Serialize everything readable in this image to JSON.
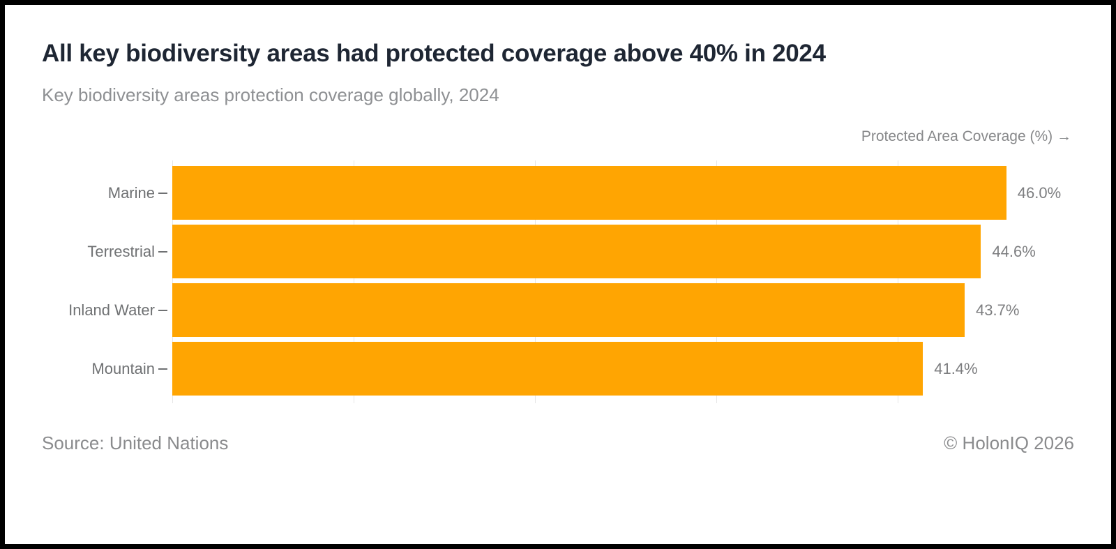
{
  "header": {
    "title": "All key biodiversity areas had protected coverage above 40% in 2024",
    "subtitle": "Key biodiversity areas protection coverage globally, 2024"
  },
  "chart_data": {
    "type": "bar",
    "orientation": "horizontal",
    "title": "All key biodiversity areas had protected coverage above 40% in 2024",
    "subtitle": "Key biodiversity areas protection coverage globally, 2024",
    "xlabel": "Protected Area Coverage (%) →",
    "categories": [
      "Marine",
      "Terrestrial",
      "Inland Water",
      "Mountain"
    ],
    "values": [
      46.0,
      44.6,
      43.7,
      41.4
    ],
    "value_labels": [
      "46.0%",
      "44.6%",
      "43.7%",
      "41.4%"
    ],
    "xlim": [
      0,
      48.2
    ],
    "xticks": [
      0,
      10,
      20,
      30,
      40
    ],
    "grid": true,
    "legend": "none",
    "bar_color": "#FFA502",
    "gridline_color": "#e6e6e6",
    "category_label_color": "#6f7173",
    "value_label_color": "#7d7e80"
  },
  "footer": {
    "source": "Source: United Nations",
    "copyright": "© HolonIQ 2026"
  }
}
